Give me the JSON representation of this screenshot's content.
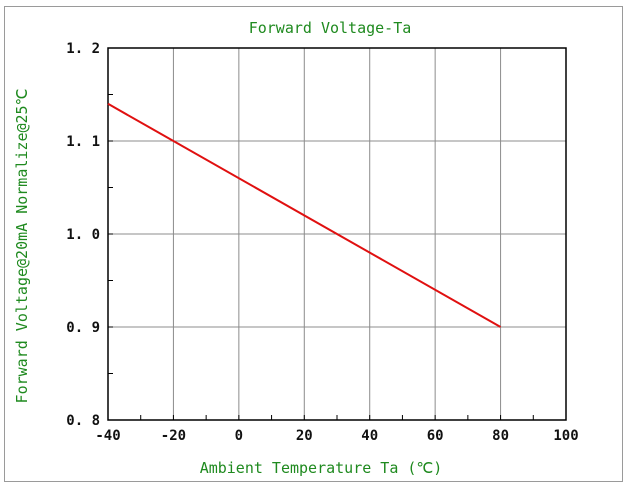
{
  "chart_data": {
    "type": "line",
    "title": "Forward Voltage-Ta",
    "xlabel": "Ambient Temperature Ta (℃)",
    "ylabel": "Forward Voltage@20mA Normalize@25℃",
    "xlim": [
      -40,
      100
    ],
    "ylim": [
      0.8,
      1.2
    ],
    "xticks": [
      -40,
      -20,
      0,
      20,
      40,
      60,
      80,
      100
    ],
    "xtick_labels": [
      "-40",
      "-20",
      "0",
      "20",
      "40",
      "60",
      "80",
      "100"
    ],
    "yticks": [
      0.8,
      0.9,
      1.0,
      1.1,
      1.2
    ],
    "ytick_labels": [
      "0. 8",
      "0. 9",
      "1. 0",
      "1. 1",
      "1. 2"
    ],
    "grid": true,
    "series": [
      {
        "color": "#e01010",
        "x": [
          -40,
          80
        ],
        "y": [
          1.14,
          0.9
        ]
      }
    ]
  }
}
